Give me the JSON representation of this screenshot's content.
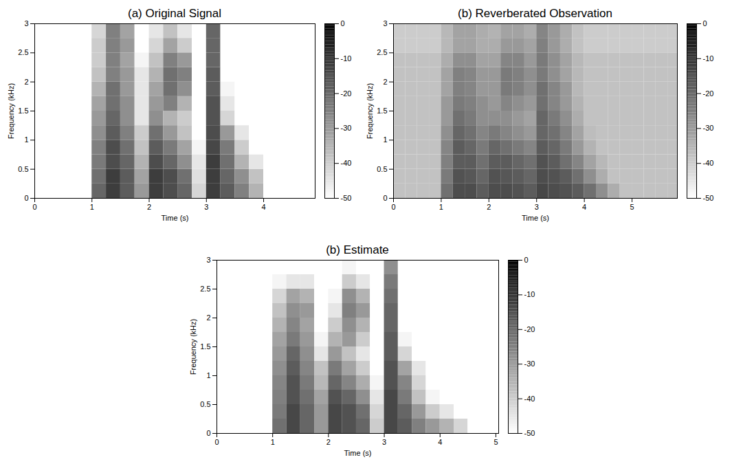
{
  "chart_data": [
    {
      "type": "heatmap",
      "title": "(a) Original Signal",
      "xlabel": "Time (s)",
      "ylabel": "Frequency (kHz)",
      "xlim": [
        0,
        4.9
      ],
      "xticks": [
        0,
        1,
        2,
        3,
        4
      ],
      "ylim": [
        0,
        3
      ],
      "yticks": [
        0,
        0.5,
        1,
        1.5,
        2,
        2.5,
        3
      ],
      "x": [
        0,
        0.25,
        0.5,
        0.75,
        1,
        1.25,
        1.5,
        1.75,
        2,
        2.25,
        2.5,
        2.75,
        3,
        3.25,
        3.5,
        3.75,
        4,
        4.25,
        4.5,
        4.75
      ],
      "y": [
        0,
        0.25,
        0.5,
        0.75,
        1,
        1.25,
        1.5,
        1.75,
        2,
        2.25,
        2.5,
        2.75
      ],
      "cells": [
        [
          -50,
          -50,
          -50,
          -50,
          -20,
          -12,
          -18,
          -30,
          -12,
          -15,
          -20,
          -42,
          -12,
          -18,
          -25,
          -35,
          -50,
          -50,
          -50,
          -50
        ],
        [
          -50,
          -50,
          -50,
          -50,
          -22,
          -12,
          -18,
          -32,
          -12,
          -15,
          -22,
          -44,
          -12,
          -20,
          -28,
          -38,
          -50,
          -50,
          -50,
          -50
        ],
        [
          -50,
          -50,
          -50,
          -50,
          -24,
          -15,
          -20,
          -35,
          -15,
          -20,
          -28,
          -45,
          -12,
          -22,
          -35,
          -45,
          -50,
          -50,
          -50,
          -50
        ],
        [
          -50,
          -50,
          -50,
          -50,
          -25,
          -15,
          -22,
          -38,
          -18,
          -24,
          -32,
          -48,
          -14,
          -24,
          -40,
          -50,
          -50,
          -50,
          -50,
          -50
        ],
        [
          -50,
          -50,
          -50,
          -50,
          -28,
          -18,
          -25,
          -40,
          -22,
          -30,
          -38,
          -50,
          -15,
          -30,
          -45,
          -50,
          -50,
          -50,
          -50,
          -50
        ],
        [
          -50,
          -50,
          -50,
          -50,
          -30,
          -20,
          -28,
          -45,
          -28,
          -35,
          -40,
          -50,
          -16,
          -42,
          -50,
          -50,
          -50,
          -50,
          -50,
          -50
        ],
        [
          -50,
          -50,
          -50,
          -50,
          -32,
          -22,
          -28,
          -45,
          -30,
          -25,
          -35,
          -50,
          -16,
          -45,
          -50,
          -50,
          -50,
          -50,
          -50,
          -50
        ],
        [
          -50,
          -50,
          -50,
          -50,
          -35,
          -22,
          -30,
          -45,
          -32,
          -22,
          -28,
          -50,
          -18,
          -48,
          -50,
          -50,
          -50,
          -50,
          -50,
          -50
        ],
        [
          -50,
          -50,
          -50,
          -50,
          -38,
          -25,
          -30,
          -45,
          -35,
          -22,
          -25,
          -50,
          -18,
          -50,
          -50,
          -50,
          -50,
          -50,
          -50,
          -50
        ],
        [
          -50,
          -50,
          -50,
          -50,
          -40,
          -25,
          -32,
          -48,
          -38,
          -25,
          -30,
          -50,
          -20,
          -50,
          -50,
          -50,
          -50,
          -50,
          -50,
          -50
        ],
        [
          -50,
          -50,
          -50,
          -50,
          -40,
          -25,
          -30,
          -50,
          -42,
          -32,
          -40,
          -50,
          -20,
          -50,
          -50,
          -50,
          -50,
          -50,
          -50,
          -50
        ],
        [
          -50,
          -50,
          -50,
          -50,
          -42,
          -25,
          -32,
          -50,
          -45,
          -38,
          -45,
          -50,
          -20,
          -50,
          -50,
          -50,
          -50,
          -50,
          -50,
          -50
        ]
      ],
      "color_range": [
        -50,
        0
      ],
      "color_ticks": [
        0,
        -10,
        -20,
        -30,
        -40,
        -50
      ]
    },
    {
      "type": "heatmap",
      "title": "(b) Reverberated Observation",
      "xlabel": "Time (s)",
      "ylabel": "Frequency (kHz)",
      "xlim": [
        0,
        5.95
      ],
      "xticks": [
        0,
        1,
        2,
        3,
        4,
        5
      ],
      "ylim": [
        0,
        3
      ],
      "yticks": [
        0,
        0.5,
        1,
        1.5,
        2,
        2.5,
        3
      ],
      "x": [
        0,
        0.25,
        0.5,
        0.75,
        1,
        1.25,
        1.5,
        1.75,
        2,
        2.25,
        2.5,
        2.75,
        3,
        3.25,
        3.5,
        3.75,
        4,
        4.25,
        4.5,
        4.75,
        5,
        5.25,
        5.5,
        5.75
      ],
      "y": [
        0,
        0.25,
        0.5,
        0.75,
        1,
        1.25,
        1.5,
        1.75,
        2,
        2.25,
        2.5,
        2.75
      ],
      "cells": [
        [
          -38,
          -38,
          -38,
          -38,
          -22,
          -15,
          -15,
          -18,
          -15,
          -15,
          -16,
          -18,
          -14,
          -15,
          -16,
          -18,
          -22,
          -28,
          -34,
          -38,
          -38,
          -38,
          -38,
          -38
        ],
        [
          -38,
          -38,
          -38,
          -38,
          -24,
          -16,
          -17,
          -20,
          -16,
          -17,
          -18,
          -20,
          -15,
          -16,
          -18,
          -22,
          -28,
          -34,
          -38,
          -38,
          -38,
          -38,
          -38,
          -38
        ],
        [
          -38,
          -38,
          -38,
          -38,
          -25,
          -18,
          -18,
          -22,
          -18,
          -18,
          -20,
          -22,
          -16,
          -18,
          -22,
          -26,
          -32,
          -36,
          -38,
          -38,
          -38,
          -38,
          -38,
          -38
        ],
        [
          -38,
          -38,
          -38,
          -38,
          -26,
          -18,
          -20,
          -24,
          -20,
          -22,
          -24,
          -26,
          -18,
          -20,
          -24,
          -30,
          -35,
          -38,
          -38,
          -38,
          -38,
          -38,
          -38,
          -38
        ],
        [
          -38,
          -38,
          -38,
          -38,
          -28,
          -20,
          -22,
          -26,
          -24,
          -26,
          -28,
          -30,
          -20,
          -22,
          -26,
          -32,
          -37,
          -38,
          -38,
          -38,
          -38,
          -38,
          -38,
          -38
        ],
        [
          -38,
          -38,
          -38,
          -38,
          -30,
          -22,
          -24,
          -28,
          -28,
          -28,
          -30,
          -32,
          -20,
          -24,
          -28,
          -34,
          -38,
          -38,
          -38,
          -38,
          -38,
          -38,
          -38,
          -38
        ],
        [
          -38,
          -38,
          -38,
          -38,
          -30,
          -24,
          -25,
          -28,
          -30,
          -26,
          -28,
          -30,
          -22,
          -26,
          -30,
          -35,
          -38,
          -38,
          -38,
          -38,
          -38,
          -38,
          -38,
          -38
        ],
        [
          -38,
          -38,
          -38,
          -38,
          -32,
          -25,
          -26,
          -30,
          -30,
          -24,
          -25,
          -28,
          -22,
          -26,
          -30,
          -36,
          -38,
          -38,
          -38,
          -38,
          -38,
          -38,
          -38,
          -38
        ],
        [
          -38,
          -38,
          -38,
          -38,
          -32,
          -25,
          -26,
          -30,
          -30,
          -24,
          -25,
          -28,
          -24,
          -28,
          -32,
          -36,
          -38,
          -38,
          -38,
          -38,
          -38,
          -38,
          -38,
          -38
        ],
        [
          -38,
          -38,
          -38,
          -38,
          -34,
          -28,
          -28,
          -32,
          -32,
          -26,
          -26,
          -30,
          -24,
          -28,
          -32,
          -36,
          -38,
          -38,
          -38,
          -38,
          -38,
          -38,
          -38,
          -38
        ],
        [
          -40,
          -40,
          -40,
          -40,
          -36,
          -32,
          -32,
          -34,
          -34,
          -30,
          -30,
          -32,
          -25,
          -30,
          -34,
          -38,
          -40,
          -40,
          -40,
          -40,
          -40,
          -40,
          -40,
          -40
        ],
        [
          -40,
          -40,
          -40,
          -40,
          -36,
          -32,
          -32,
          -34,
          -35,
          -32,
          -32,
          -34,
          -26,
          -30,
          -34,
          -38,
          -40,
          -40,
          -40,
          -40,
          -40,
          -40,
          -40,
          -40
        ]
      ],
      "color_range": [
        -50,
        0
      ],
      "color_ticks": [
        0,
        -10,
        -20,
        -30,
        -40,
        -50
      ]
    },
    {
      "type": "heatmap",
      "title": "(b) Estimate",
      "xlabel": "Time (s)",
      "ylabel": "Frequency (kHz)",
      "xlim": [
        0,
        5.05
      ],
      "xticks": [
        0,
        1,
        2,
        3,
        4,
        5
      ],
      "ylim": [
        0,
        3
      ],
      "yticks": [
        0,
        0.5,
        1,
        1.5,
        2,
        2.5,
        3
      ],
      "x": [
        0,
        0.25,
        0.5,
        0.75,
        1,
        1.25,
        1.5,
        1.75,
        2,
        2.25,
        2.5,
        2.75,
        3,
        3.25,
        3.5,
        3.75,
        4,
        4.25,
        4.5,
        4.75
      ],
      "y": [
        0,
        0.25,
        0.5,
        0.75,
        1,
        1.25,
        1.5,
        1.75,
        2,
        2.25,
        2.5,
        2.75
      ],
      "cells": [
        [
          -50,
          -50,
          -50,
          -50,
          -22,
          -14,
          -20,
          -30,
          -14,
          -16,
          -20,
          -40,
          -14,
          -18,
          -25,
          -30,
          -35,
          -42,
          -50,
          -50
        ],
        [
          -50,
          -50,
          -50,
          -50,
          -24,
          -14,
          -20,
          -30,
          -14,
          -16,
          -22,
          -42,
          -14,
          -20,
          -30,
          -40,
          -45,
          -50,
          -50,
          -50
        ],
        [
          -50,
          -50,
          -50,
          -50,
          -25,
          -16,
          -22,
          -32,
          -16,
          -20,
          -28,
          -45,
          -14,
          -24,
          -38,
          -48,
          -50,
          -50,
          -50,
          -50
        ],
        [
          -50,
          -50,
          -50,
          -50,
          -26,
          -16,
          -24,
          -36,
          -20,
          -26,
          -34,
          -48,
          -16,
          -26,
          -42,
          -50,
          -50,
          -50,
          -50,
          -50
        ],
        [
          -50,
          -50,
          -50,
          -50,
          -28,
          -18,
          -26,
          -38,
          -24,
          -32,
          -40,
          -50,
          -16,
          -32,
          -45,
          -50,
          -50,
          -50,
          -50,
          -50
        ],
        [
          -50,
          -50,
          -50,
          -50,
          -30,
          -20,
          -28,
          -45,
          -30,
          -38,
          -45,
          -50,
          -18,
          -42,
          -50,
          -50,
          -50,
          -50,
          -50,
          -50
        ],
        [
          -50,
          -50,
          -50,
          -50,
          -32,
          -24,
          -30,
          -48,
          -35,
          -30,
          -40,
          -50,
          -18,
          -48,
          -50,
          -50,
          -50,
          -50,
          -50,
          -50
        ],
        [
          -50,
          -50,
          -50,
          -50,
          -35,
          -26,
          -32,
          -50,
          -40,
          -28,
          -35,
          -50,
          -20,
          -50,
          -50,
          -50,
          -50,
          -50,
          -50,
          -50
        ],
        [
          -50,
          -50,
          -50,
          -50,
          -38,
          -28,
          -30,
          -50,
          -45,
          -25,
          -30,
          -50,
          -20,
          -50,
          -50,
          -50,
          -50,
          -50,
          -50,
          -50
        ],
        [
          -50,
          -50,
          -50,
          -50,
          -42,
          -32,
          -35,
          -50,
          -48,
          -28,
          -35,
          -50,
          -22,
          -50,
          -50,
          -50,
          -50,
          -50,
          -50,
          -50
        ],
        [
          -50,
          -50,
          -50,
          -50,
          -48,
          -45,
          -45,
          -50,
          -50,
          -40,
          -45,
          -50,
          -24,
          -50,
          -50,
          -50,
          -50,
          -50,
          -50,
          -50
        ],
        [
          -50,
          -50,
          -50,
          -50,
          -50,
          -50,
          -50,
          -50,
          -50,
          -48,
          -50,
          -50,
          -28,
          -50,
          -50,
          -50,
          -50,
          -50,
          -50,
          -50
        ]
      ],
      "color_range": [
        -50,
        0
      ],
      "color_ticks": [
        0,
        -10,
        -20,
        -30,
        -40,
        -50
      ]
    }
  ]
}
